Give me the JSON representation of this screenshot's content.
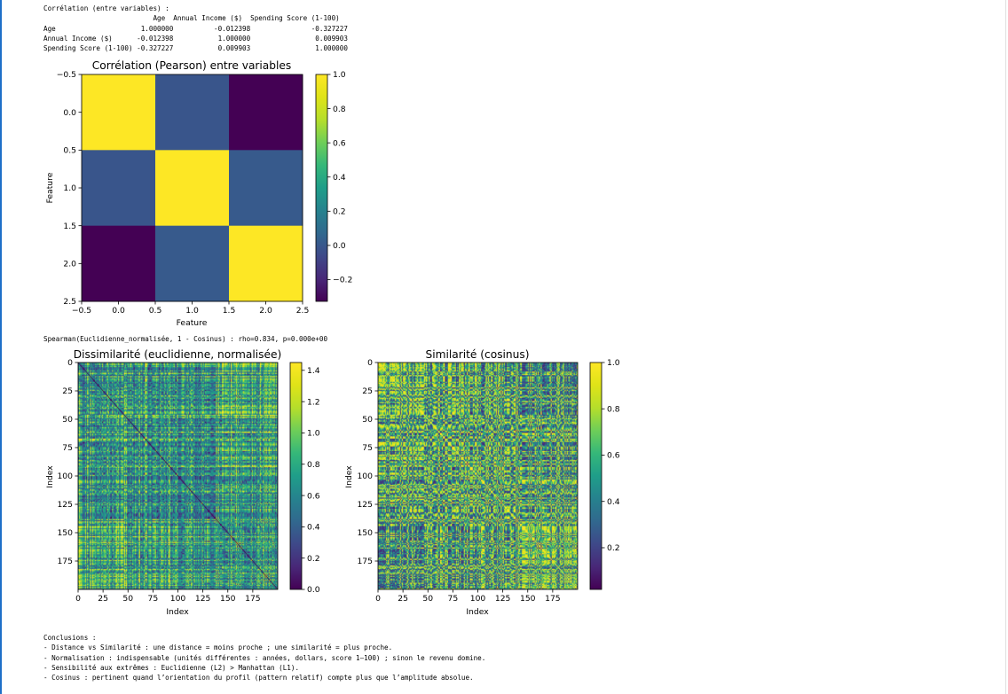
{
  "corr_text": {
    "title": "Corrélation (entre variables) :",
    "header": "                           Age  Annual Income ($)  Spending Score (1-100)",
    "rows": [
      "Age                     1.000000          -0.012398               -0.327227",
      "Annual Income ($)      -0.012398           1.000000                0.009903",
      "Spending Score (1-100) -0.327227           0.009903                1.000000"
    ]
  },
  "spearman": "Spearman(Euclidienne_normalisée, 1 - Cosinus) : rho=0.834, p=0.000e+00",
  "conclusions": {
    "title": "Conclusions :",
    "lines": [
      "- Distance vs Similarité : une distance = moins proche ; une similarité = plus proche.",
      "- Normalisation : indispensable (unités différentes : années, dollars, score 1–100) ; sinon le revenu domine.",
      "- Sensibilité aux extrêmes : Euclidienne (L2) > Manhattan (L1).",
      "- Cosinus : pertinent quand l’orientation du profil (pattern relatif) compte plus que l’amplitude absolue."
    ]
  },
  "chart_data": [
    {
      "type": "heatmap",
      "title": "Corrélation (Pearson) entre variables",
      "xlabel": "Feature",
      "ylabel": "Feature",
      "xlim": [
        -0.5,
        2.5
      ],
      "ylim": [
        2.5,
        -0.5
      ],
      "xticks": [
        -0.5,
        0.0,
        0.5,
        1.0,
        1.5,
        2.0,
        2.5
      ],
      "xtick_labels": [
        "−0.5",
        "0.0",
        "0.5",
        "1.0",
        "1.5",
        "2.0",
        "2.5"
      ],
      "yticks": [
        -0.5,
        0.0,
        0.5,
        1.0,
        1.5,
        2.0,
        2.5
      ],
      "ytick_labels": [
        "−0.5",
        "0.0",
        "0.5",
        "1.0",
        "1.5",
        "2.0",
        "2.5"
      ],
      "colormap": "viridis",
      "vmin": -0.327227,
      "vmax": 1.0,
      "values": [
        [
          1.0,
          -0.012398,
          -0.327227
        ],
        [
          -0.012398,
          1.0,
          0.009903
        ],
        [
          -0.327227,
          0.009903,
          1.0
        ]
      ],
      "colorbar_ticks": [
        1.0,
        0.8,
        0.6,
        0.4,
        0.2,
        0.0,
        -0.2
      ],
      "colorbar_labels": [
        "1.0",
        "0.8",
        "0.6",
        "0.4",
        "0.2",
        "0.0",
        "−0.2"
      ]
    },
    {
      "type": "heatmap",
      "title": "Dissimilarité (euclidienne, normalisée)",
      "xlabel": "Index",
      "ylabel": "Index",
      "n": 200,
      "xlim": [
        0,
        200
      ],
      "ylim": [
        200,
        0
      ],
      "xticks": [
        0,
        25,
        50,
        75,
        100,
        125,
        150,
        175
      ],
      "xtick_labels": [
        "0",
        "25",
        "50",
        "75",
        "100",
        "125",
        "150",
        "175"
      ],
      "yticks": [
        0,
        25,
        50,
        75,
        100,
        125,
        150,
        175
      ],
      "ytick_labels": [
        "0",
        "25",
        "50",
        "75",
        "100",
        "125",
        "150",
        "175"
      ],
      "colormap": "viridis",
      "vmin": 0.0,
      "vmax": 1.45,
      "colorbar_ticks": [
        1.4,
        1.2,
        1.0,
        0.8,
        0.6,
        0.4,
        0.2,
        0.0
      ],
      "colorbar_labels": [
        "1.4",
        "1.2",
        "1.0",
        "0.8",
        "0.6",
        "0.4",
        "0.2",
        "0.0"
      ]
    },
    {
      "type": "heatmap",
      "title": "Similarité (cosinus)",
      "xlabel": "Index",
      "ylabel": "Index",
      "n": 200,
      "xlim": [
        0,
        200
      ],
      "ylim": [
        200,
        0
      ],
      "xticks": [
        0,
        25,
        50,
        75,
        100,
        125,
        150,
        175
      ],
      "xtick_labels": [
        "0",
        "25",
        "50",
        "75",
        "100",
        "125",
        "150",
        "175"
      ],
      "yticks": [
        0,
        25,
        50,
        75,
        100,
        125,
        150,
        175
      ],
      "ytick_labels": [
        "0",
        "25",
        "50",
        "75",
        "100",
        "125",
        "150",
        "175"
      ],
      "colormap": "viridis",
      "vmin": 0.02,
      "vmax": 1.0,
      "colorbar_ticks": [
        1.0,
        0.8,
        0.6,
        0.4,
        0.2
      ],
      "colorbar_labels": [
        "1.0",
        "0.8",
        "0.6",
        "0.4",
        "0.2"
      ]
    }
  ]
}
